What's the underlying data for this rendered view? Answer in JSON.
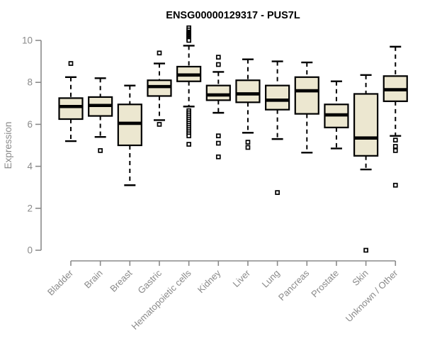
{
  "chart_data": {
    "type": "boxplot",
    "title": "ENSG00000129317 - PUS7L",
    "ylabel": "Expression",
    "xlabel": "",
    "ylim": [
      0,
      10
    ],
    "yticks": [
      0,
      2,
      4,
      6,
      8,
      10
    ],
    "grid": false,
    "legend": "none",
    "x_label_rotation_deg": 45,
    "categories": [
      "Bladder",
      "Brain",
      "Breast",
      "Gastric",
      "Hematopoietic cells",
      "Kidney",
      "Liver",
      "Lung",
      "Pancreas",
      "Prostate",
      "Skin",
      "Unknown / Other"
    ],
    "series": [
      {
        "category": "Bladder",
        "whisker_low": 5.2,
        "q1": 6.25,
        "median": 6.85,
        "q3": 7.25,
        "whisker_high": 8.25,
        "outliers": [
          8.9
        ]
      },
      {
        "category": "Brain",
        "whisker_low": 5.4,
        "q1": 6.4,
        "median": 6.9,
        "q3": 7.3,
        "whisker_high": 8.2,
        "outliers": [
          4.75
        ]
      },
      {
        "category": "Breast",
        "whisker_low": 3.1,
        "q1": 5.0,
        "median": 6.05,
        "q3": 6.95,
        "whisker_high": 7.85,
        "outliers": []
      },
      {
        "category": "Gastric",
        "whisker_low": 6.2,
        "q1": 7.35,
        "median": 7.8,
        "q3": 8.1,
        "whisker_high": 8.9,
        "outliers": [
          9.4,
          6.0
        ]
      },
      {
        "category": "Hematopoietic cells",
        "whisker_low": 6.85,
        "q1": 8.05,
        "median": 8.35,
        "q3": 8.75,
        "whisker_high": 9.75,
        "outliers": [
          10.6,
          10.5,
          10.4,
          10.35,
          10.3,
          10.25,
          10.2,
          10.15,
          10.1,
          10.05,
          10.0,
          6.65,
          6.55,
          6.45,
          6.35,
          6.25,
          6.15,
          6.05,
          5.95,
          5.85,
          5.75,
          5.65,
          5.55,
          5.45,
          5.05
        ]
      },
      {
        "category": "Kidney",
        "whisker_low": 6.55,
        "q1": 7.15,
        "median": 7.4,
        "q3": 7.85,
        "whisker_high": 8.5,
        "outliers": [
          9.2,
          8.85,
          5.45,
          5.1,
          4.45
        ]
      },
      {
        "category": "Liver",
        "whisker_low": 5.6,
        "q1": 7.05,
        "median": 7.45,
        "q3": 8.1,
        "whisker_high": 9.1,
        "outliers": [
          5.15,
          4.9
        ]
      },
      {
        "category": "Lung",
        "whisker_low": 5.3,
        "q1": 6.7,
        "median": 7.15,
        "q3": 7.85,
        "whisker_high": 9.0,
        "outliers": [
          2.75
        ]
      },
      {
        "category": "Pancreas",
        "whisker_low": 4.65,
        "q1": 6.5,
        "median": 7.6,
        "q3": 8.25,
        "whisker_high": 8.95,
        "outliers": []
      },
      {
        "category": "Prostate",
        "whisker_low": 4.85,
        "q1": 5.85,
        "median": 6.45,
        "q3": 6.95,
        "whisker_high": 8.05,
        "outliers": []
      },
      {
        "category": "Skin",
        "whisker_low": 3.85,
        "q1": 4.5,
        "median": 5.35,
        "q3": 7.45,
        "whisker_high": 8.35,
        "outliers": [
          0.0
        ]
      },
      {
        "category": "Unknown / Other",
        "whisker_low": 5.45,
        "q1": 7.1,
        "median": 7.65,
        "q3": 8.3,
        "whisker_high": 9.7,
        "outliers": [
          5.25,
          4.95,
          4.75,
          3.1
        ]
      }
    ],
    "colors": {
      "box_fill": "#ece7d0",
      "box_stroke": "#000000",
      "median": "#000000",
      "whisker": "#000000",
      "outlier_stroke": "#000000",
      "outlier_fill": "#ffffff",
      "axis": "#8a8a8a",
      "tick_label": "#8a8a8a",
      "title": "#000000"
    }
  }
}
